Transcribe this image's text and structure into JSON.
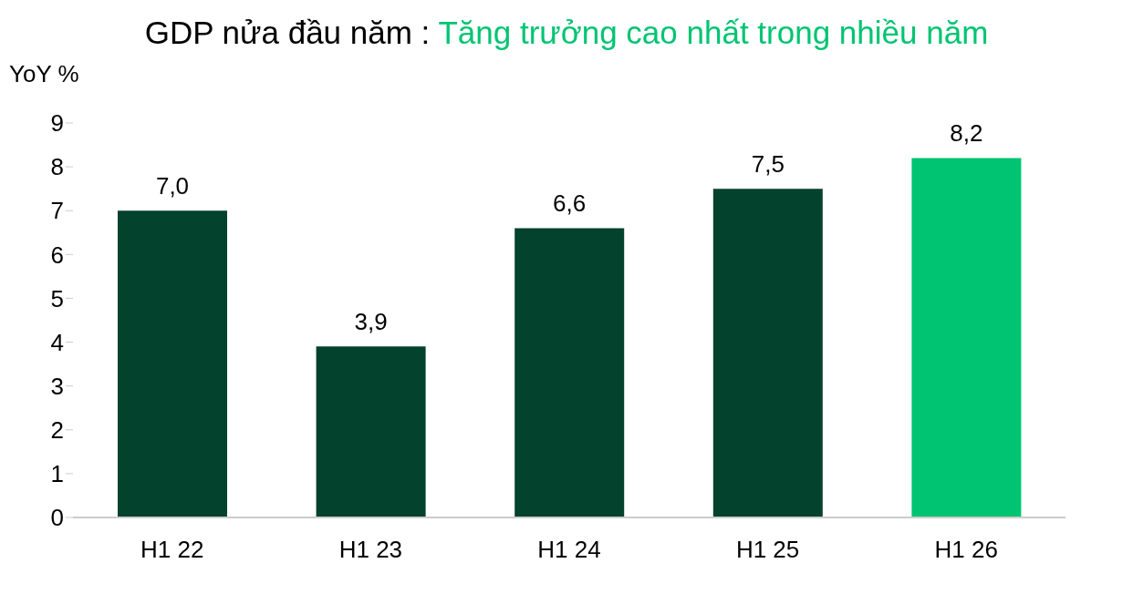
{
  "chart_data": {
    "type": "bar",
    "title": "GDP nửa đầu năm :",
    "subtitle": "Tăng trưởng cao nhất trong nhiều năm",
    "ylabel": "YoY %",
    "categories": [
      "H1 22",
      "H1 23",
      "H1 24",
      "H1 25",
      "H1 26"
    ],
    "values": [
      7.0,
      3.9,
      6.6,
      7.5,
      8.2
    ],
    "value_labels": [
      "7,0",
      "3,9",
      "6,6",
      "7,5",
      "8,2"
    ],
    "colors": [
      "#03422c",
      "#03422c",
      "#03422c",
      "#03422c",
      "#00c472"
    ],
    "ylim": [
      0,
      9
    ],
    "yticks": [
      0,
      1,
      2,
      3,
      4,
      5,
      6,
      7,
      8,
      9
    ],
    "grid": false
  }
}
